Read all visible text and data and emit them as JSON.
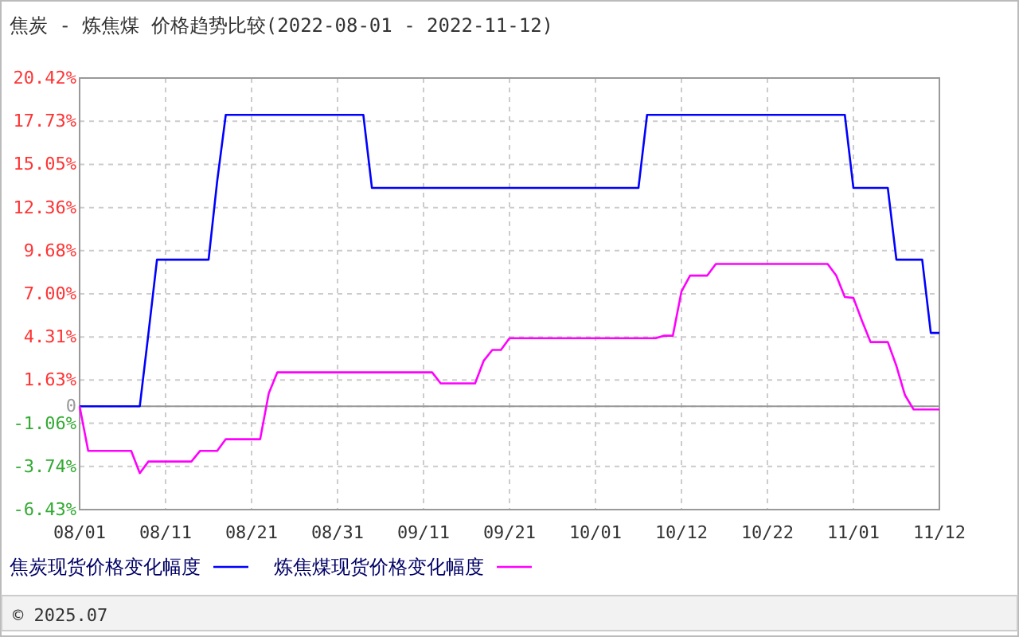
{
  "chart_data": {
    "type": "line",
    "title": "焦炭 - 炼焦煤 价格趋势比较(2022-08-01 - 2022-11-12)",
    "categories": [
      "08/01",
      null,
      null,
      null,
      null,
      null,
      null,
      null,
      null,
      null,
      "08/11",
      null,
      null,
      null,
      null,
      null,
      null,
      null,
      null,
      null,
      "08/21",
      null,
      null,
      null,
      null,
      null,
      null,
      null,
      null,
      null,
      "08/31",
      null,
      null,
      null,
      null,
      null,
      null,
      null,
      null,
      null,
      "09/11",
      null,
      null,
      null,
      null,
      null,
      null,
      null,
      null,
      null,
      "09/21",
      null,
      null,
      null,
      null,
      null,
      null,
      null,
      null,
      null,
      "10/01",
      null,
      null,
      null,
      null,
      null,
      null,
      null,
      null,
      null,
      "10/12",
      null,
      null,
      null,
      null,
      null,
      null,
      null,
      null,
      null,
      "10/22",
      null,
      null,
      null,
      null,
      null,
      null,
      null,
      null,
      null,
      "11/01",
      null,
      null,
      null,
      null,
      null,
      null,
      null,
      null,
      null,
      "11/12"
    ],
    "series": [
      {
        "name": "焦炭现货价格变化幅度",
        "color": "#0000ff",
        "values": [
          0,
          0,
          0,
          0,
          0,
          0,
          0,
          0,
          4.5,
          9.12,
          9.12,
          9.12,
          9.12,
          9.12,
          9.12,
          9.12,
          14,
          18.13,
          18.13,
          18.13,
          18.13,
          18.13,
          18.13,
          18.13,
          18.13,
          18.13,
          18.13,
          18.13,
          18.13,
          18.13,
          18.13,
          18.13,
          18.13,
          18.13,
          13.58,
          13.58,
          13.58,
          13.58,
          13.58,
          13.58,
          13.58,
          13.58,
          13.58,
          13.58,
          13.58,
          13.58,
          13.58,
          13.58,
          13.58,
          13.58,
          13.58,
          13.58,
          13.58,
          13.58,
          13.58,
          13.58,
          13.58,
          13.58,
          13.58,
          13.58,
          13.58,
          13.58,
          13.58,
          13.58,
          13.58,
          13.58,
          18.13,
          18.13,
          18.13,
          18.13,
          18.13,
          18.13,
          18.13,
          18.13,
          18.13,
          18.13,
          18.13,
          18.13,
          18.13,
          18.13,
          18.13,
          18.13,
          18.13,
          18.13,
          18.13,
          18.13,
          18.13,
          18.13,
          18.13,
          18.13,
          13.58,
          13.58,
          13.58,
          13.58,
          13.58,
          9.12,
          9.12,
          9.12,
          9.12,
          4.56,
          4.56
        ]
      },
      {
        "name": "炼焦煤现货价格变化幅度",
        "color": "#ff00ff",
        "values": [
          0,
          -2.78,
          -2.78,
          -2.78,
          -2.78,
          -2.78,
          -2.78,
          -4.16,
          -3.44,
          -3.44,
          -3.44,
          -3.44,
          -3.44,
          -3.44,
          -2.78,
          -2.78,
          -2.78,
          -2.05,
          -2.05,
          -2.05,
          -2.05,
          -2.05,
          0.8,
          2.11,
          2.11,
          2.11,
          2.11,
          2.11,
          2.11,
          2.11,
          2.11,
          2.11,
          2.11,
          2.11,
          2.11,
          2.11,
          2.11,
          2.11,
          2.11,
          2.11,
          2.11,
          2.11,
          1.42,
          1.42,
          1.42,
          1.42,
          1.42,
          2.83,
          3.5,
          3.5,
          4.23,
          4.23,
          4.23,
          4.23,
          4.23,
          4.23,
          4.23,
          4.23,
          4.23,
          4.23,
          4.23,
          4.23,
          4.23,
          4.23,
          4.23,
          4.23,
          4.23,
          4.23,
          4.39,
          4.39,
          7.14,
          8.13,
          8.13,
          8.13,
          8.85,
          8.85,
          8.85,
          8.85,
          8.85,
          8.85,
          8.85,
          8.85,
          8.85,
          8.85,
          8.85,
          8.85,
          8.85,
          8.85,
          8.13,
          6.8,
          6.74,
          5.31,
          3.99,
          3.99,
          3.99,
          2.51,
          0.69,
          -0.2,
          -0.2,
          -0.2,
          -0.2
        ]
      }
    ],
    "ylim": [
      -6.43,
      20.42
    ],
    "yticks": [
      {
        "value": 20.42,
        "label": "20.42%"
      },
      {
        "value": 17.73,
        "label": "17.73%"
      },
      {
        "value": 15.05,
        "label": "15.05%"
      },
      {
        "value": 12.36,
        "label": "12.36%"
      },
      {
        "value": 9.68,
        "label": "9.68%"
      },
      {
        "value": 7.0,
        "label": "7.00%"
      },
      {
        "value": 4.31,
        "label": "4.31%"
      },
      {
        "value": 1.63,
        "label": "1.63%"
      },
      0,
      {
        "value": -1.06,
        "label": "-1.06%"
      },
      {
        "value": -3.74,
        "label": "-3.74%"
      },
      {
        "value": -6.43,
        "label": "-6.43%"
      }
    ],
    "grid": true,
    "legend": "bottom",
    "marker": "none",
    "line_style": "solid",
    "annotations": [
      "© 2025.07"
    ]
  }
}
